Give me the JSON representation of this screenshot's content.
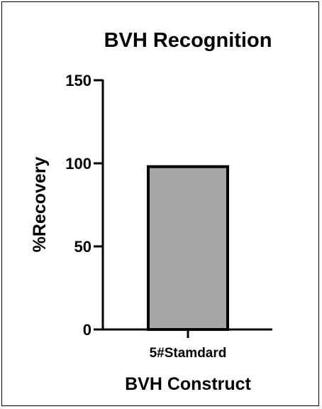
{
  "chart_data": {
    "type": "bar",
    "title": "BVH Recognition",
    "xlabel": "BVH Construct",
    "ylabel": "%Recovery",
    "categories": [
      "5#Stamdard"
    ],
    "values": [
      98
    ],
    "ylim": [
      0,
      150
    ],
    "yticks": [
      0,
      50,
      100,
      150
    ],
    "grid": false,
    "legend": "none",
    "colors": {
      "bar_fill": "#a6a6a6",
      "bar_stroke": "#000000",
      "axis": "#000000"
    }
  }
}
